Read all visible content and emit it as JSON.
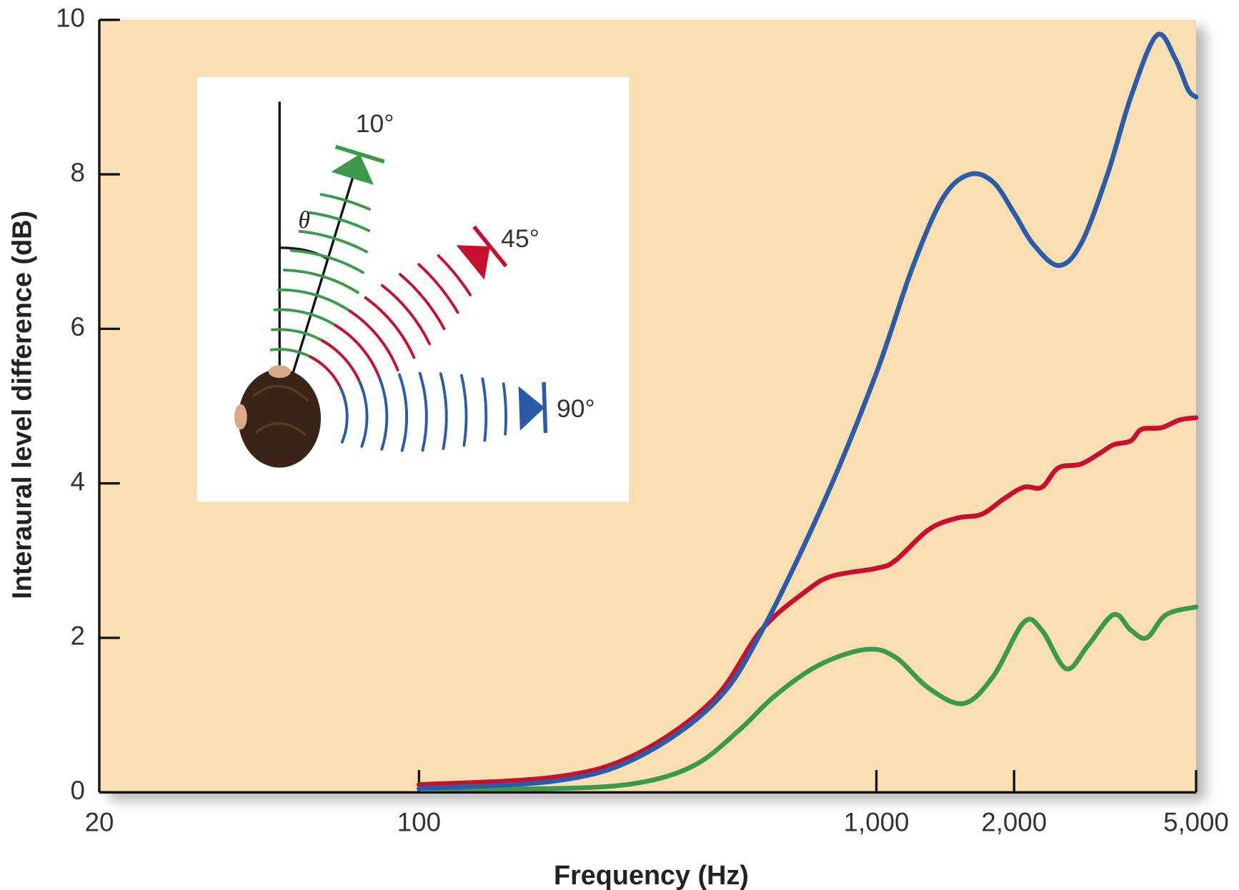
{
  "chart_data": {
    "type": "line",
    "xlabel": "Frequency (Hz)",
    "ylabel": "Interaural level difference (dB)",
    "xscale": "log",
    "xlim": [
      20,
      5000
    ],
    "xticks": [
      20,
      100,
      {
        "value": 1000,
        "label": "1,000"
      },
      {
        "value": 2000,
        "label": "2,000"
      },
      {
        "value": 5000,
        "label": "5,000"
      }
    ],
    "ylim": [
      0,
      10
    ],
    "yticks": [
      0,
      2,
      4,
      6,
      8,
      10
    ],
    "background": "#f8deb0",
    "annotations": [
      "θ"
    ],
    "series": [
      {
        "name": "10°",
        "color": "#3a9a4a",
        "x": [
          100,
          200,
          300,
          400,
          500,
          600,
          750,
          950,
          1100,
          1300,
          1550,
          1800,
          2100,
          2300,
          2600,
          2900,
          3300,
          3600,
          3900,
          4300,
          5000
        ],
        "values": [
          0.05,
          0.05,
          0.12,
          0.35,
          0.8,
          1.25,
          1.65,
          1.85,
          1.75,
          1.35,
          1.15,
          1.5,
          2.2,
          2.1,
          1.6,
          1.9,
          2.3,
          2.1,
          2.0,
          2.3,
          2.4
        ]
      },
      {
        "name": "45°",
        "color": "#c8102e",
        "x": [
          100,
          200,
          300,
          440,
          560,
          700,
          800,
          1000,
          1100,
          1300,
          1500,
          1700,
          1900,
          2100,
          2300,
          2500,
          2800,
          3100,
          3300,
          3600,
          3800,
          4200,
          4600,
          5000
        ],
        "values": [
          0.1,
          0.2,
          0.5,
          1.2,
          2.1,
          2.6,
          2.8,
          2.9,
          3.0,
          3.4,
          3.55,
          3.6,
          3.8,
          3.95,
          3.95,
          4.2,
          4.25,
          4.4,
          4.5,
          4.55,
          4.7,
          4.72,
          4.82,
          4.85
        ]
      },
      {
        "name": "90°",
        "color": "#2a5caa",
        "x": [
          100,
          200,
          300,
          443,
          563,
          773,
          1000,
          1200,
          1400,
          1600,
          1800,
          2000,
          2200,
          2500,
          2800,
          3200,
          3600,
          4100,
          4500,
          4800,
          5000
        ],
        "values": [
          0.05,
          0.15,
          0.45,
          1.16,
          2.1,
          3.8,
          5.43,
          6.8,
          7.7,
          8.0,
          7.9,
          7.5,
          7.1,
          6.82,
          7.1,
          8.0,
          9.0,
          9.8,
          9.5,
          9.1,
          9.0
        ]
      }
    ]
  }
}
